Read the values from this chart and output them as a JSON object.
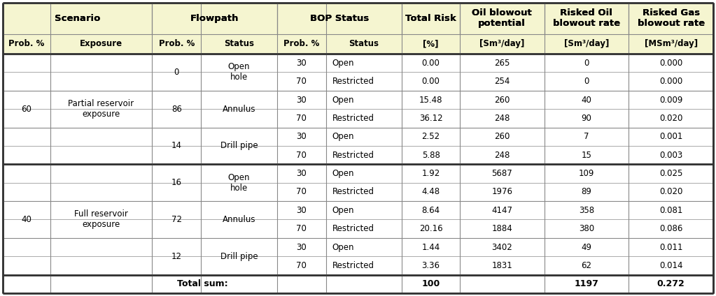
{
  "spans_h1": [
    {
      "text": "Scenario",
      "cs": 0,
      "ce": 1
    },
    {
      "text": "Flowpath",
      "cs": 2,
      "ce": 3
    },
    {
      "text": "BOP Status",
      "cs": 4,
      "ce": 5
    },
    {
      "text": "Total Risk",
      "cs": 6,
      "ce": 6
    },
    {
      "text": "Oil blowout\npotential",
      "cs": 7,
      "ce": 7
    },
    {
      "text": "Risked Oil\nblowout rate",
      "cs": 8,
      "ce": 8
    },
    {
      "text": "Risked Gas\nblowout rate",
      "cs": 9,
      "ce": 9
    }
  ],
  "header2": [
    "Prob. %",
    "Exposure",
    "Prob. %",
    "Status",
    "Prob. %",
    "Status",
    "[%]",
    "[Sm³/day]",
    "[Sm³/day]",
    "[MSm³/day]"
  ],
  "rows": [
    {
      "sc_prob": "60",
      "sc_exp": "Partial reservoir\nexposure",
      "sub_rows": [
        {
          "fp_prob": "0",
          "fp_status": "Open\nhole",
          "bop_rows": [
            {
              "bp": "30",
              "bs": "Open",
              "tr": "0.00",
              "op": "265",
              "ro": "0",
              "rg": "0.000"
            },
            {
              "bp": "70",
              "bs": "Restricted",
              "tr": "0.00",
              "op": "254",
              "ro": "0",
              "rg": "0.000"
            }
          ]
        },
        {
          "fp_prob": "86",
          "fp_status": "Annulus",
          "bop_rows": [
            {
              "bp": "30",
              "bs": "Open",
              "tr": "15.48",
              "op": "260",
              "ro": "40",
              "rg": "0.009"
            },
            {
              "bp": "70",
              "bs": "Restricted",
              "tr": "36.12",
              "op": "248",
              "ro": "90",
              "rg": "0.020"
            }
          ]
        },
        {
          "fp_prob": "14",
          "fp_status": "Drill pipe",
          "bop_rows": [
            {
              "bp": "30",
              "bs": "Open",
              "tr": "2.52",
              "op": "260",
              "ro": "7",
              "rg": "0.001"
            },
            {
              "bp": "70",
              "bs": "Restricted",
              "tr": "5.88",
              "op": "248",
              "ro": "15",
              "rg": "0.003"
            }
          ]
        }
      ]
    },
    {
      "sc_prob": "40",
      "sc_exp": "Full reservoir\nexposure",
      "sub_rows": [
        {
          "fp_prob": "16",
          "fp_status": "Open\nhole",
          "bop_rows": [
            {
              "bp": "30",
              "bs": "Open",
              "tr": "1.92",
              "op": "5687",
              "ro": "109",
              "rg": "0.025"
            },
            {
              "bp": "70",
              "bs": "Restricted",
              "tr": "4.48",
              "op": "1976",
              "ro": "89",
              "rg": "0.020"
            }
          ]
        },
        {
          "fp_prob": "72",
          "fp_status": "Annulus",
          "bop_rows": [
            {
              "bp": "30",
              "bs": "Open",
              "tr": "8.64",
              "op": "4147",
              "ro": "358",
              "rg": "0.081"
            },
            {
              "bp": "70",
              "bs": "Restricted",
              "tr": "20.16",
              "op": "1884",
              "ro": "380",
              "rg": "0.086"
            }
          ]
        },
        {
          "fp_prob": "12",
          "fp_status": "Drill pipe",
          "bop_rows": [
            {
              "bp": "30",
              "bs": "Open",
              "tr": "1.44",
              "op": "3402",
              "ro": "49",
              "rg": "0.011"
            },
            {
              "bp": "70",
              "bs": "Restricted",
              "tr": "3.36",
              "op": "1831",
              "ro": "62",
              "rg": "0.014"
            }
          ]
        }
      ]
    }
  ],
  "total": {
    "tr": "100",
    "ro": "1197",
    "rg": "0.272"
  },
  "header_bg": "#f5f5d0",
  "white_bg": "#ffffff",
  "border_thin": "#888888",
  "border_thick": "#333333",
  "col_widths_raw": [
    55,
    118,
    57,
    88,
    57,
    88,
    67,
    98,
    98,
    98
  ],
  "row_heights_raw": [
    44,
    28,
    26,
    26,
    26,
    26,
    26,
    26,
    26,
    26,
    26,
    26,
    26,
    26,
    26
  ],
  "fs_header": 9.5,
  "fs_data": 8.5,
  "fs_total": 9.0
}
